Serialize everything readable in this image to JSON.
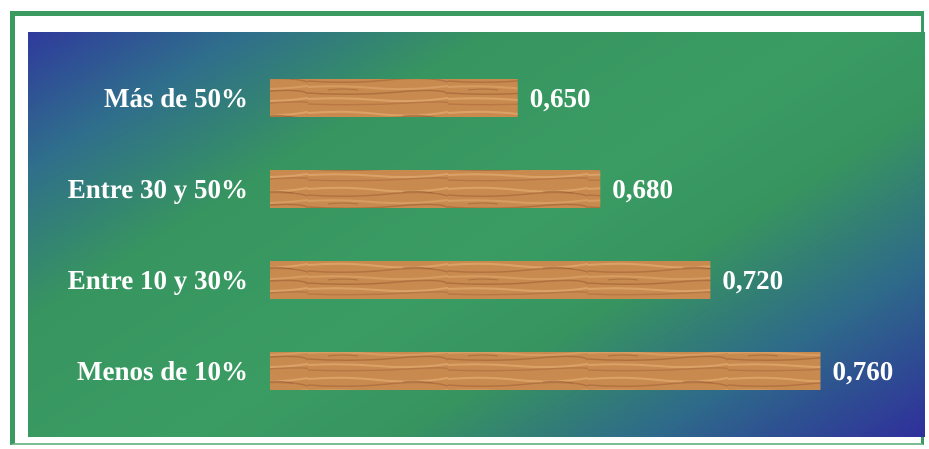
{
  "chart_data": {
    "type": "bar",
    "orientation": "horizontal",
    "categories": [
      "Más de 50%",
      "Entre 30 y 50%",
      "Entre 10 y 30%",
      "Menos de 10%"
    ],
    "values": [
      0.65,
      0.68,
      0.72,
      0.76
    ],
    "value_labels": [
      "0,650",
      "0,680",
      "0,720",
      "0,760"
    ],
    "xlim": [
      0.56,
      0.77
    ],
    "title": "",
    "xlabel": "",
    "ylabel": "",
    "grid": false,
    "legend": "none",
    "colors": {
      "bar_base": "#c98a4f",
      "bar_grain_light": "#e0a86c",
      "bar_grain_dark": "#a8683a",
      "background_blue": "#2f3a9c",
      "background_green": "#3a9c63",
      "frame": "#3a9a60",
      "label": "#ffffff"
    }
  }
}
